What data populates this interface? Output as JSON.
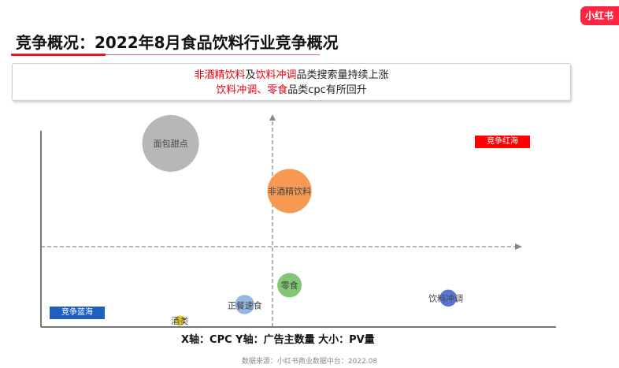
{
  "brand": {
    "logo_text": "小红书",
    "logo_color": "#ff2442"
  },
  "title": "竞争概况：2022年8月食品饮料行业竞争概况",
  "summary": {
    "line1": [
      {
        "text": "非酒精饮料",
        "highlight": true
      },
      {
        "text": "及",
        "highlight": false
      },
      {
        "text": "饮料冲调",
        "highlight": true
      },
      {
        "text": "品类搜索量持续上涨",
        "highlight": false
      }
    ],
    "line2": [
      {
        "text": "饮料冲调、零食",
        "highlight": true
      },
      {
        "text": "品类cpc有所回升",
        "highlight": false
      }
    ]
  },
  "quadrant_tags": {
    "red_ocean": {
      "text": "竞争红海",
      "color": "#ff0000"
    },
    "blue_ocean": {
      "text": "竞争蓝海",
      "color": "#1f5fbf"
    }
  },
  "axis_note": "X轴：CPC  Y轴：广告主数量  大小：PV量",
  "source": "数据来源：小红书商业数据中台：2022.08",
  "chart_data": {
    "type": "scatter",
    "x_axis": "CPC",
    "y_axis": "广告主数量",
    "size": "PV量",
    "scale_note": "relative values estimated on a 0-10 scale; quadrant dividers at 5",
    "xlim": [
      0,
      10
    ],
    "ylim": [
      0,
      10
    ],
    "divider": {
      "x": 5,
      "y": 5
    },
    "points": [
      {
        "name": "面包甜点",
        "x": 2.8,
        "y": 8.9,
        "size": 10,
        "color": "#b3b3b3"
      },
      {
        "name": "非酒精饮料",
        "x": 5.3,
        "y": 7.1,
        "size": 7.8,
        "color": "#f5934a"
      },
      {
        "name": "零食",
        "x": 5.3,
        "y": 2.6,
        "size": 4.3,
        "color": "#7cc36b"
      },
      {
        "name": "正餐速食",
        "x": 4.4,
        "y": 1.4,
        "size": 3.4,
        "color": "#8fb3e0"
      },
      {
        "name": "饮料冲调",
        "x": 8.1,
        "y": 1.8,
        "size": 3.0,
        "color": "#4f6fcf"
      },
      {
        "name": "酒类",
        "x": 3.0,
        "y": 0.4,
        "size": 1.8,
        "color": "#f2d21b"
      }
    ]
  }
}
